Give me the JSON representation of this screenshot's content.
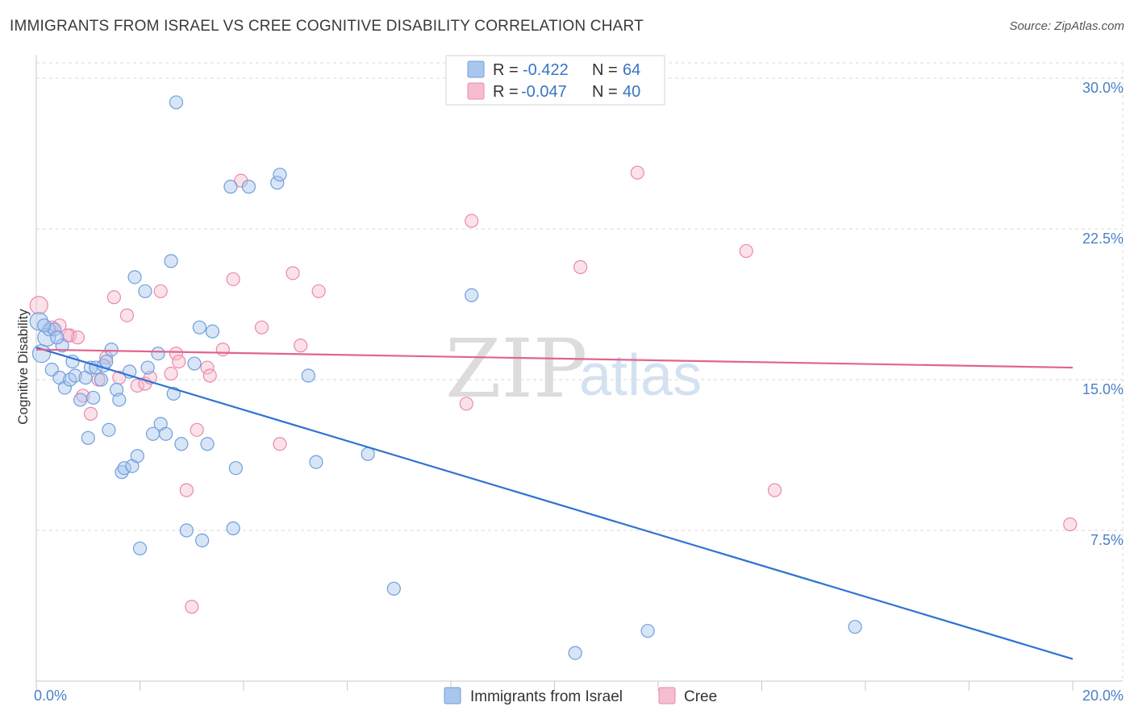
{
  "title": "IMMIGRANTS FROM ISRAEL VS CREE COGNITIVE DISABILITY CORRELATION CHART",
  "source": "Source: ZipAtlas.com",
  "watermark": {
    "zip": "ZIP",
    "atlas": "atlas"
  },
  "colors": {
    "blue_fill": "#a9c6ee",
    "blue_stroke": "#6f9fdc",
    "blue_line": "#2f72d2",
    "pink_fill": "#f6bdd0",
    "pink_stroke": "#e98aa9",
    "pink_line": "#e0658e",
    "grid": "#dadada",
    "axis_text": "#4a80c8"
  },
  "legend": {
    "rows": [
      {
        "r_label": "R =",
        "r_value": "-0.422",
        "n_label": "N =",
        "n_value": "64"
      },
      {
        "r_label": "R =",
        "r_value": "-0.047",
        "n_label": "N =",
        "n_value": "40"
      }
    ]
  },
  "chart_data": {
    "type": "scatter",
    "title": "IMMIGRANTS FROM ISRAEL VS CREE COGNITIVE DISABILITY CORRELATION CHART",
    "xlabel": "",
    "ylabel": "Cognitive Disability",
    "xlim": [
      0,
      20
    ],
    "ylim": [
      0,
      30
    ],
    "x_tick_labels": [
      "0.0%",
      "20.0%"
    ],
    "y_ticks": [
      7.5,
      15.0,
      22.5,
      30.0
    ],
    "y_tick_labels": [
      "7.5%",
      "15.0%",
      "22.5%",
      "30.0%"
    ],
    "grid": true,
    "legend_position": "top-center",
    "series": [
      {
        "name": "Immigrants from Israel",
        "color": "#6f9fdc",
        "trend": {
          "x": [
            0,
            20
          ],
          "y": [
            16.6,
            1.1
          ]
        },
        "points": [
          [
            0.05,
            17.9
          ],
          [
            0.1,
            16.3
          ],
          [
            0.2,
            17.1
          ],
          [
            0.25,
            17.5
          ],
          [
            0.3,
            15.5
          ],
          [
            0.35,
            17.5
          ],
          [
            0.45,
            15.1
          ],
          [
            0.5,
            16.7
          ],
          [
            0.55,
            14.6
          ],
          [
            0.65,
            15.0
          ],
          [
            0.7,
            15.9
          ],
          [
            0.75,
            15.2
          ],
          [
            0.85,
            14.0
          ],
          [
            0.95,
            15.1
          ],
          [
            1.0,
            12.1
          ],
          [
            1.05,
            15.6
          ],
          [
            1.1,
            14.1
          ],
          [
            1.15,
            15.6
          ],
          [
            1.25,
            15.0
          ],
          [
            1.3,
            15.7
          ],
          [
            1.4,
            12.5
          ],
          [
            1.45,
            16.5
          ],
          [
            1.55,
            14.5
          ],
          [
            1.6,
            14.0
          ],
          [
            1.65,
            10.4
          ],
          [
            1.7,
            10.6
          ],
          [
            1.8,
            15.4
          ],
          [
            1.85,
            10.7
          ],
          [
            1.9,
            20.1
          ],
          [
            1.95,
            11.2
          ],
          [
            2.0,
            6.6
          ],
          [
            2.1,
            19.4
          ],
          [
            2.15,
            15.6
          ],
          [
            2.25,
            12.3
          ],
          [
            2.35,
            16.3
          ],
          [
            2.4,
            12.8
          ],
          [
            2.5,
            12.3
          ],
          [
            2.6,
            20.9
          ],
          [
            2.65,
            14.3
          ],
          [
            2.7,
            28.8
          ],
          [
            2.8,
            11.8
          ],
          [
            2.9,
            7.5
          ],
          [
            3.05,
            15.8
          ],
          [
            3.15,
            17.6
          ],
          [
            3.2,
            7.0
          ],
          [
            3.3,
            11.8
          ],
          [
            3.4,
            17.4
          ],
          [
            3.75,
            24.6
          ],
          [
            3.8,
            7.6
          ],
          [
            3.85,
            10.6
          ],
          [
            4.1,
            24.6
          ],
          [
            4.65,
            24.8
          ],
          [
            4.7,
            25.2
          ],
          [
            5.25,
            15.2
          ],
          [
            5.4,
            10.9
          ],
          [
            6.4,
            11.3
          ],
          [
            6.9,
            4.6
          ],
          [
            8.4,
            19.2
          ],
          [
            10.4,
            1.4
          ],
          [
            11.8,
            2.5
          ],
          [
            15.8,
            2.7
          ],
          [
            0.15,
            17.7
          ],
          [
            1.35,
            15.9
          ],
          [
            0.4,
            17.1
          ]
        ]
      },
      {
        "name": "Cree",
        "color": "#e98aa9",
        "trend": {
          "x": [
            0,
            20
          ],
          "y": [
            16.5,
            15.6
          ]
        },
        "points": [
          [
            0.05,
            18.7
          ],
          [
            0.3,
            17.6
          ],
          [
            0.45,
            17.7
          ],
          [
            0.65,
            17.2
          ],
          [
            0.8,
            17.1
          ],
          [
            0.9,
            14.2
          ],
          [
            1.05,
            13.3
          ],
          [
            1.2,
            15.0
          ],
          [
            1.35,
            16.1
          ],
          [
            1.5,
            19.1
          ],
          [
            1.6,
            15.1
          ],
          [
            1.75,
            18.2
          ],
          [
            1.95,
            14.7
          ],
          [
            2.1,
            14.8
          ],
          [
            2.2,
            15.1
          ],
          [
            2.4,
            19.4
          ],
          [
            2.6,
            15.3
          ],
          [
            2.7,
            16.3
          ],
          [
            2.75,
            15.9
          ],
          [
            2.9,
            9.5
          ],
          [
            3.0,
            3.7
          ],
          [
            3.1,
            12.5
          ],
          [
            3.3,
            15.6
          ],
          [
            3.35,
            15.2
          ],
          [
            3.6,
            16.5
          ],
          [
            3.8,
            20.0
          ],
          [
            3.95,
            24.9
          ],
          [
            4.35,
            17.6
          ],
          [
            4.7,
            11.8
          ],
          [
            4.95,
            20.3
          ],
          [
            5.1,
            16.7
          ],
          [
            5.45,
            19.4
          ],
          [
            8.3,
            13.8
          ],
          [
            8.4,
            22.9
          ],
          [
            10.5,
            20.6
          ],
          [
            11.6,
            25.3
          ],
          [
            13.7,
            21.4
          ],
          [
            14.25,
            9.5
          ],
          [
            19.95,
            7.8
          ],
          [
            0.6,
            17.2
          ]
        ]
      }
    ]
  }
}
